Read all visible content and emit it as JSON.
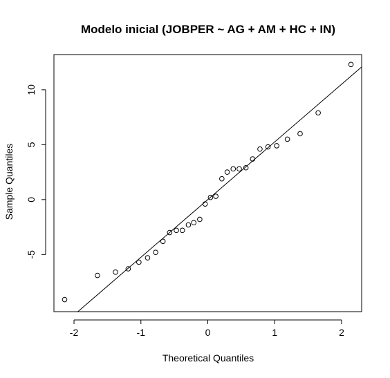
{
  "chart_data": {
    "type": "scatter",
    "title": "Modelo inicial (JOBPER ~ AG + AM + HC + IN)",
    "xlabel": "Theoretical Quantiles",
    "ylabel": "Sample Quantiles",
    "xlim": [
      -2.3,
      2.3
    ],
    "ylim": [
      -10.2,
      13.2
    ],
    "x_ticks": [
      -2,
      -1,
      0,
      1,
      2
    ],
    "y_ticks": [
      -5,
      0,
      5,
      10
    ],
    "x_tick_labels": [
      "-2",
      "-1",
      "0",
      "1",
      "2"
    ],
    "y_tick_labels": [
      "-5",
      "0",
      "5",
      "10"
    ],
    "grid": false,
    "legend": "none",
    "points": {
      "x": [
        -2.14,
        -1.65,
        -1.38,
        -1.19,
        -1.03,
        -0.9,
        -0.78,
        -0.67,
        -0.57,
        -0.47,
        -0.38,
        -0.29,
        -0.21,
        -0.12,
        -0.04,
        0.04,
        0.12,
        0.21,
        0.29,
        0.38,
        0.47,
        0.57,
        0.67,
        0.78,
        0.9,
        1.03,
        1.19,
        1.38,
        1.65,
        2.14
      ],
      "y": [
        -9.1,
        -6.9,
        -6.6,
        -6.3,
        -5.7,
        -5.3,
        -4.8,
        -3.8,
        -3.0,
        -2.8,
        -2.8,
        -2.3,
        -2.1,
        -1.8,
        -0.4,
        0.2,
        0.3,
        1.9,
        2.5,
        2.8,
        2.8,
        2.9,
        3.7,
        4.6,
        4.8,
        4.9,
        5.5,
        6.0,
        7.9,
        12.3
      ]
    },
    "reference_line": {
      "intercept": 0.0,
      "slope": 5.25
    }
  }
}
